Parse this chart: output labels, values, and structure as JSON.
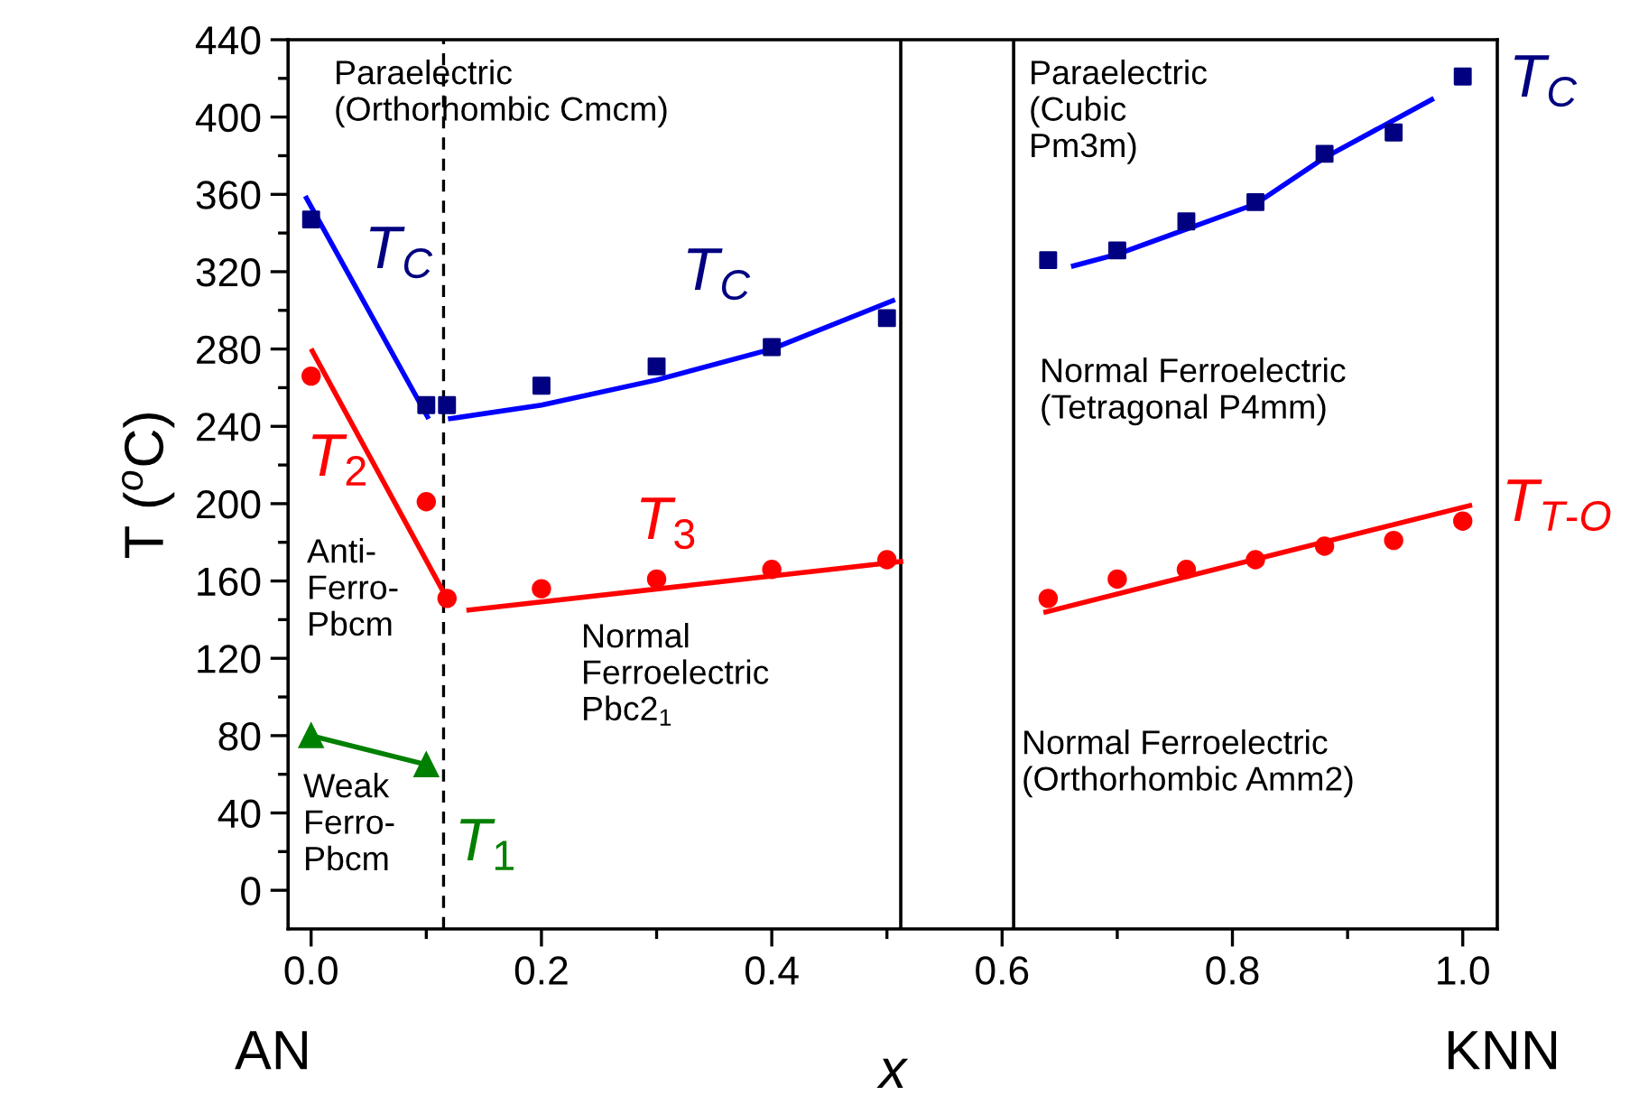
{
  "chart_data": {
    "type": "scatter",
    "xlabel": "x",
    "ylabel": "T ($^{o}$C)",
    "xlim": [
      -0.02,
      1.03
    ],
    "ylim": [
      -20,
      440
    ],
    "xticks": [
      {
        "value": 0,
        "label": "0.0"
      },
      {
        "value": 0.1,
        "label": null
      },
      {
        "value": 0.2,
        "label": "0.2"
      },
      {
        "value": 0.3,
        "label": null
      },
      {
        "value": 0.4,
        "label": "0.4"
      },
      {
        "value": 0.5,
        "label": null
      },
      {
        "value": 0.6,
        "label": "0.6"
      },
      {
        "value": 0.7,
        "label": null
      },
      {
        "value": 0.8,
        "label": "0.8"
      },
      {
        "value": 0.9,
        "label": null
      },
      {
        "value": 1.0,
        "label": "1.0"
      }
    ],
    "yticks": [
      0,
      {
        "value": 20,
        "label": null
      },
      40,
      {
        "value": 60,
        "label": null
      },
      80,
      {
        "value": 100,
        "label": null
      },
      120,
      {
        "value": 140,
        "label": null
      },
      160,
      {
        "value": 180,
        "label": null
      },
      200,
      {
        "value": 220,
        "label": null
      },
      240,
      {
        "value": 260,
        "label": null
      },
      280,
      {
        "value": 300,
        "label": null
      },
      320,
      {
        "value": 340,
        "label": null
      },
      360,
      {
        "value": 380,
        "label": null
      },
      400,
      {
        "value": 420,
        "label": null
      },
      440
    ],
    "grid": false,
    "legend": false,
    "series": [
      {
        "name": "T$_{C}$",
        "marker": "square",
        "color": "#000080",
        "x": [
          0,
          0.1
        ],
        "values": [
          347,
          251
        ]
      },
      {
        "name": "T$_{C}$",
        "marker": "square",
        "color": "#000080",
        "x": [
          0.118,
          0.2,
          0.3,
          0.4,
          0.5
        ],
        "values": [
          251,
          261,
          271,
          281,
          296
        ]
      },
      {
        "name": "T$_{C}$",
        "marker": "square",
        "color": "#000080",
        "x": [
          0.64,
          0.7,
          0.76,
          0.82,
          0.88,
          0.94,
          1.0
        ],
        "values": [
          326,
          331,
          346,
          356,
          381,
          392,
          421
        ]
      },
      {
        "name": "T$_{2}$",
        "marker": "circle",
        "color": "#ff0000",
        "x": [
          0,
          0.1,
          0.118
        ],
        "values": [
          266,
          201,
          151
        ]
      },
      {
        "name": "T$_{3}$",
        "marker": "circle",
        "color": "#ff0000",
        "x": [
          0.2,
          0.3,
          0.4,
          0.5
        ],
        "values": [
          156,
          161,
          166,
          171
        ]
      },
      {
        "name": "T$_{T-O}$",
        "marker": "circle",
        "color": "#ff0000",
        "x": [
          0.64,
          0.7,
          0.76,
          0.82,
          0.88,
          0.94,
          1.0
        ],
        "values": [
          151,
          161,
          166,
          171,
          178,
          181,
          191
        ]
      },
      {
        "name": "T$_{1}$",
        "type": "line",
        "marker": "triangle",
        "color": "#008000",
        "x": [
          0,
          0.1
        ],
        "values": [
          80,
          65
        ]
      },
      {
        "type": "line",
        "marker": "none",
        "color": "#0000ff",
        "x": [
          -0.004,
          0.101
        ],
        "values": [
          358,
          245
        ]
      },
      {
        "type": "line",
        "marker": "none",
        "color": "#0000ff",
        "x": [
          0.121,
          0.2,
          0.3,
          0.4,
          0.505
        ],
        "values": [
          244,
          251,
          264,
          280,
          305
        ]
      },
      {
        "type": "line",
        "marker": "none",
        "color": "#0000ff",
        "x": [
          0.662,
          0.7,
          0.76,
          0.82,
          0.88,
          0.973
        ],
        "values": [
          323,
          329,
          342,
          355,
          379,
          409
        ]
      },
      {
        "type": "line",
        "marker": "none",
        "color": "#ff0000",
        "x": [
          0.001,
          0.117
        ],
        "values": [
          279,
          152
        ]
      },
      {
        "type": "line",
        "marker": "none",
        "color": "#ff0000",
        "x": [
          0.137,
          0.512
        ],
        "values": [
          145,
          170
        ]
      },
      {
        "type": "line",
        "marker": "none",
        "color": "#ff0000",
        "x": [
          0.638,
          1.006
        ],
        "values": [
          144,
          199
        ]
      }
    ],
    "ref_lines": [
      {
        "axis": "x",
        "value": 0.115,
        "color": "#000000",
        "line_style": "dashed"
      },
      {
        "axis": "x",
        "value": 0.512,
        "color": "#000000",
        "line_style": "solid"
      },
      {
        "axis": "x",
        "value": 0.61,
        "color": "#000000",
        "line_style": "solid"
      }
    ],
    "annotations": [
      "Paraelectric\n(Orthorhombic Cmcm)",
      "Paraelectric\n(Cubic\nPm3m)",
      "Normal Ferroelectric\n(Tetragonal P4mm)",
      "Normal Ferroelectric\n(Orthorhombic Amm2)",
      "Anti-\nFerro-\nPbcm",
      "Weak\nFerro-\nPbcm",
      "Normal\nFerroelectric\nPbc2$_{1}$",
      "AN",
      "KNN"
    ]
  }
}
